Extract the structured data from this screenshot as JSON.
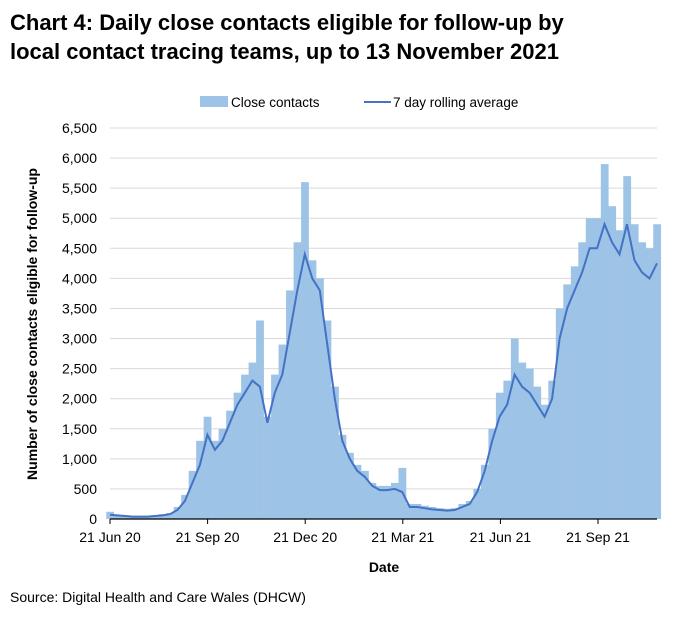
{
  "title_line1": "Chart 4: Daily close contacts eligible for follow-up by",
  "title_line2": "local contact tracing teams, up to 13 November 2021",
  "source": "Source: Digital Health and Care Wales (DHCW)",
  "colors": {
    "bars": "#9DC3E6",
    "line": "#4472C4",
    "grid": "#D9D9D9"
  },
  "chart_data": {
    "type": "bar",
    "title": "Chart 4: Daily close contacts eligible for follow-up by local contact tracing teams, up to 13 November 2021",
    "xlabel": "Date",
    "ylabel": "Number of close contacts eligible for follow-up",
    "ylim": [
      0,
      6500
    ],
    "yticks": [
      0,
      500,
      1000,
      1500,
      2000,
      2500,
      3000,
      3500,
      4000,
      4500,
      5000,
      5500,
      6000,
      6500
    ],
    "ytick_labels": [
      "0",
      "500",
      "1,000",
      "1,500",
      "2,000",
      "2,500",
      "3,000",
      "3,500",
      "4,000",
      "4,500",
      "5,000",
      "5,500",
      "6,000",
      "6,500"
    ],
    "xticks": [
      {
        "week": 0,
        "label": "21 Jun 20"
      },
      {
        "week": 13,
        "label": "21 Sep 20"
      },
      {
        "week": 26,
        "label": "21 Dec 20"
      },
      {
        "week": 39,
        "label": "21 Mar 21"
      },
      {
        "week": 52,
        "label": "21 Jun 21"
      },
      {
        "week": 65,
        "label": "21 Sep 21"
      }
    ],
    "grid": true,
    "legend_position": "top",
    "series": [
      {
        "name": "Close contacts",
        "type": "bar",
        "values": [
          120,
          70,
          60,
          50,
          50,
          40,
          60,
          80,
          100,
          200,
          400,
          800,
          1300,
          1700,
          1300,
          1500,
          1800,
          2100,
          2400,
          2600,
          3300,
          1700,
          2400,
          2900,
          3800,
          4600,
          5600,
          4300,
          4000,
          3300,
          2200,
          1400,
          1100,
          900,
          800,
          600,
          550,
          550,
          600,
          850,
          250,
          250,
          220,
          200,
          180,
          170,
          180,
          250,
          300,
          500,
          900,
          1500,
          2100,
          2300,
          3000,
          2600,
          2500,
          2200,
          1900,
          2300,
          3500,
          3900,
          4200,
          4600,
          5000,
          5000,
          5900,
          5200,
          4800,
          5700,
          4900,
          4600,
          4500,
          4900
        ]
      },
      {
        "name": "7 day rolling average",
        "type": "line",
        "values": [
          70,
          60,
          50,
          40,
          40,
          40,
          50,
          60,
          80,
          150,
          300,
          600,
          900,
          1400,
          1150,
          1300,
          1600,
          1900,
          2100,
          2300,
          2200,
          1600,
          2100,
          2400,
          3100,
          3800,
          4400,
          4000,
          3800,
          2900,
          2000,
          1300,
          1000,
          800,
          700,
          550,
          480,
          480,
          500,
          450,
          200,
          200,
          180,
          160,
          150,
          140,
          150,
          200,
          250,
          450,
          800,
          1300,
          1700,
          1900,
          2400,
          2200,
          2100,
          1900,
          1700,
          2000,
          3000,
          3500,
          3800,
          4100,
          4500,
          4500,
          4900,
          4600,
          4400,
          4900,
          4300,
          4100,
          4000,
          4250
        ]
      }
    ]
  }
}
